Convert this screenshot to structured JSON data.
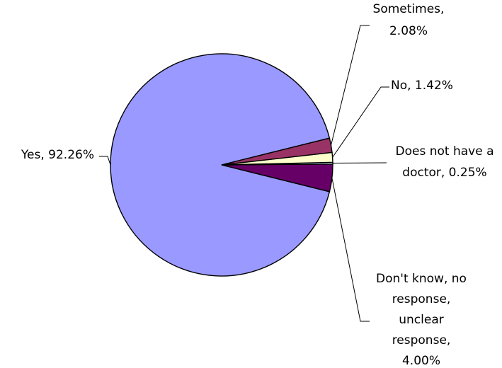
{
  "chart_data": {
    "type": "pie",
    "title": "",
    "slices": [
      {
        "label": "Yes",
        "value": 92.26,
        "value_label": "92.26%",
        "color": "#9999ff"
      },
      {
        "label": "Sometimes",
        "value": 2.08,
        "value_label": "2.08%",
        "color": "#993366"
      },
      {
        "label": "No",
        "value": 1.42,
        "value_label": "1.42%",
        "color": "#ffffcc"
      },
      {
        "label": "Does not have a doctor",
        "value": 0.25,
        "value_label": "0.25%",
        "color": "#ccffff"
      },
      {
        "label": "Don't know, no response, unclear response",
        "value": 4.0,
        "value_label": "4.00%",
        "color": "#660066"
      }
    ],
    "data_labels": [
      [
        "Yes, 92.26%"
      ],
      [
        "Sometimes,",
        "2.08%"
      ],
      [
        "No, 1.42%"
      ],
      [
        "Does not have a",
        "doctor, 0.25%"
      ],
      [
        "Don't know, no",
        "response,",
        "unclear",
        "response,",
        "4.00%"
      ]
    ],
    "legend": "none",
    "label_style": "category and percentage with leader lines"
  }
}
